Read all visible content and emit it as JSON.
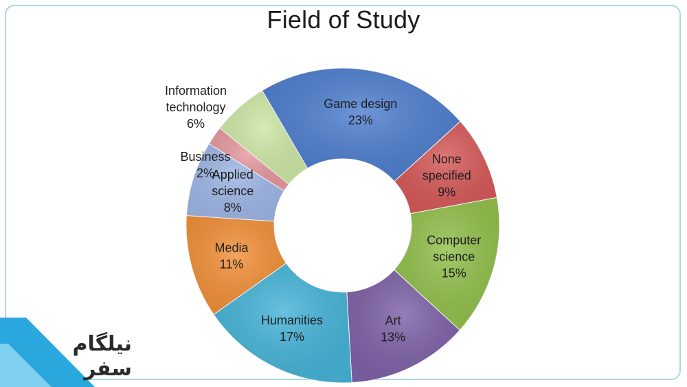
{
  "chart_data": {
    "type": "pie",
    "title": "Field of Study",
    "categories": [
      "Game design",
      "None specified",
      "Computer science",
      "Art",
      "Humanities",
      "Media",
      "Applied science",
      "Business",
      "Information technology"
    ],
    "values": [
      23,
      9,
      15,
      13,
      17,
      11,
      8,
      2,
      6
    ],
    "value_labels": [
      "23%",
      "9%",
      "15%",
      "13%",
      "17%",
      "11%",
      "8%",
      "2%",
      "6%"
    ],
    "label_lines": [
      [
        "Game design",
        "23%"
      ],
      [
        "None",
        "specified",
        "9%"
      ],
      [
        "Computer",
        "science",
        "15%"
      ],
      [
        "Art",
        "13%"
      ],
      [
        "Humanities",
        "17%"
      ],
      [
        "Media",
        "11%"
      ],
      [
        "Applied",
        "science",
        "8%"
      ],
      [
        "Business",
        "2%"
      ],
      [
        "Information",
        "technology",
        "6%"
      ]
    ],
    "colors": [
      "#4f7fcf",
      "#d75a5a",
      "#93c04c",
      "#7f63a8",
      "#47b4d8",
      "#f2913a",
      "#9fb7e6",
      "#e79aa0",
      "#cde8a6"
    ],
    "donut": true,
    "legend": "none"
  },
  "watermark": {
    "line1": "نیلگام",
    "line2": "سفر",
    "accent_color": "#2aa7dd"
  }
}
